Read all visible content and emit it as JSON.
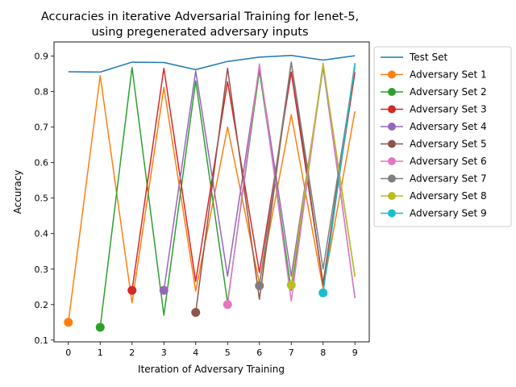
{
  "chart_data": {
    "type": "line",
    "title": "Accuracies in iterative Adversarial Training for lenet-5,",
    "subtitle": "using pregenerated adversary inputs",
    "xlabel": "Iteration of Adversary Training",
    "ylabel": "Accuracy",
    "xlim": [
      -0.45,
      9.45
    ],
    "ylim": [
      0.095,
      0.94
    ],
    "xticks": [
      0,
      1,
      2,
      3,
      4,
      5,
      6,
      7,
      8,
      9
    ],
    "yticks": [
      0.1,
      0.2,
      0.3,
      0.4,
      0.5,
      0.6,
      0.7,
      0.8,
      0.9
    ],
    "legend_position": "outside-right-top",
    "grid": false,
    "series": [
      {
        "name": "Test Set",
        "color": "#1f77b4",
        "marker": false,
        "start": 0,
        "values": [
          0.856,
          0.855,
          0.883,
          0.882,
          0.862,
          0.885,
          0.897,
          0.902,
          0.889,
          0.901
        ]
      },
      {
        "name": "Adversary Set 1",
        "color": "#ff7f0e",
        "marker": true,
        "start": 0,
        "values": [
          0.15,
          0.845,
          0.205,
          0.812,
          0.238,
          0.7,
          0.26,
          0.735,
          0.245,
          0.745
        ]
      },
      {
        "name": "Adversary Set 2",
        "color": "#2ca02c",
        "marker": true,
        "start": 1,
        "values": [
          0.136,
          0.868,
          0.17,
          0.83,
          0.205,
          0.86,
          0.24,
          0.87,
          0.28
        ]
      },
      {
        "name": "Adversary Set 3",
        "color": "#d62728",
        "marker": true,
        "start": 2,
        "values": [
          0.24,
          0.866,
          0.265,
          0.828,
          0.29,
          0.855,
          0.26,
          0.855
        ]
      },
      {
        "name": "Adversary Set 4",
        "color": "#9467bd",
        "marker": true,
        "start": 3,
        "values": [
          0.24,
          0.858,
          0.28,
          0.87,
          0.28,
          0.87,
          0.22
        ]
      },
      {
        "name": "Adversary Set 5",
        "color": "#8c564b",
        "marker": true,
        "start": 4,
        "values": [
          0.178,
          0.866,
          0.215,
          0.883,
          0.255,
          0.88
        ]
      },
      {
        "name": "Adversary Set 6",
        "color": "#e377c2",
        "marker": true,
        "start": 5,
        "values": [
          0.2,
          0.878,
          0.21,
          0.88,
          0.218
        ]
      },
      {
        "name": "Adversary Set 7",
        "color": "#7f7f7f",
        "marker": true,
        "start": 6,
        "values": [
          0.253,
          0.883,
          0.3,
          0.87
        ]
      },
      {
        "name": "Adversary Set 8",
        "color": "#bcbd22",
        "marker": true,
        "start": 7,
        "values": [
          0.255,
          0.878,
          0.278
        ]
      },
      {
        "name": "Adversary Set 9",
        "color": "#17becf",
        "marker": true,
        "start": 8,
        "values": [
          0.233,
          0.878
        ]
      }
    ]
  }
}
